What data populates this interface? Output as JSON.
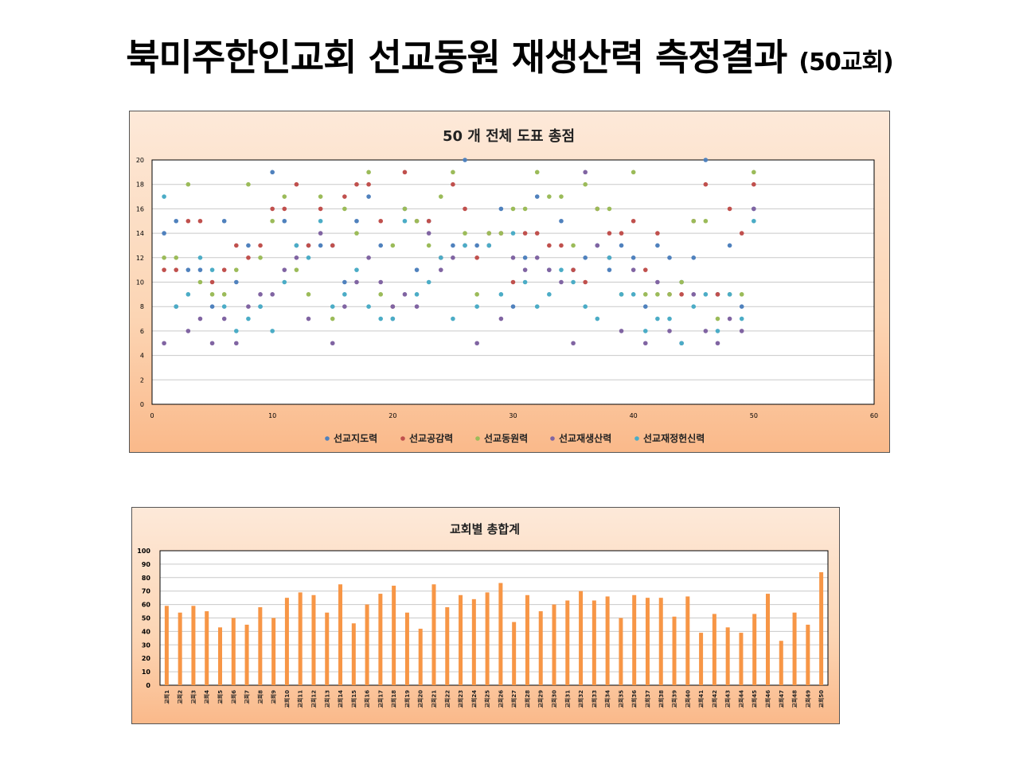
{
  "page": {
    "title": "북미주한인교회 선교동원 재생산력 측정결과",
    "subtitle": "(50교회)"
  },
  "chart_data": [
    {
      "type": "scatter",
      "title": "50 개 전체 도표 총점",
      "xlabel": "",
      "ylabel": "",
      "xlim": [
        0,
        60
      ],
      "ylim": [
        0,
        20
      ],
      "xticks": [
        0,
        10,
        20,
        30,
        40,
        50,
        60
      ],
      "yticks": [
        0,
        2,
        4,
        6,
        8,
        10,
        12,
        14,
        16,
        18,
        20
      ],
      "grid": true,
      "legend_position": "bottom",
      "x": [
        1,
        2,
        3,
        4,
        5,
        6,
        7,
        8,
        9,
        10,
        11,
        12,
        13,
        14,
        15,
        16,
        17,
        18,
        19,
        20,
        21,
        22,
        23,
        24,
        25,
        26,
        27,
        28,
        29,
        30,
        31,
        32,
        33,
        34,
        35,
        36,
        37,
        38,
        39,
        40,
        41,
        42,
        43,
        44,
        45,
        46,
        47,
        48,
        49,
        50
      ],
      "series": [
        {
          "name": "선교지도력",
          "color": "#4f81bd",
          "values": [
            14,
            15,
            11,
            11,
            8,
            15,
            10,
            13,
            8,
            19,
            15,
            13,
            13,
            13,
            13,
            10,
            15,
            17,
            13,
            7,
            16,
            11,
            15,
            12,
            13,
            20,
            13,
            13,
            16,
            8,
            12,
            17,
            11,
            15,
            11,
            12,
            13,
            11,
            13,
            12,
            8,
            13,
            12,
            10,
            12,
            20,
            9,
            13,
            8,
            16
          ]
        },
        {
          "name": "선교공감력",
          "color": "#c0504d",
          "values": [
            11,
            11,
            15,
            15,
            10,
            11,
            13,
            12,
            13,
            16,
            16,
            18,
            13,
            16,
            13,
            17,
            18,
            18,
            15,
            8,
            19,
            15,
            15,
            12,
            18,
            16,
            12,
            14,
            14,
            10,
            14,
            14,
            13,
            13,
            11,
            10,
            16,
            14,
            14,
            15,
            11,
            14,
            9,
            9,
            15,
            18,
            9,
            16,
            14,
            18
          ]
        },
        {
          "name": "선교동원력",
          "color": "#9bbb59",
          "values": [
            12,
            12,
            18,
            10,
            9,
            9,
            11,
            18,
            12,
            15,
            17,
            11,
            9,
            17,
            7,
            16,
            14,
            19,
            9,
            13,
            16,
            15,
            13,
            17,
            19,
            14,
            9,
            14,
            14,
            16,
            16,
            19,
            17,
            17,
            13,
            18,
            16,
            16,
            9,
            19,
            9,
            9,
            9,
            10,
            15,
            15,
            7,
            9,
            9,
            19
          ]
        },
        {
          "name": "선교재생산력",
          "color": "#8064a2",
          "values": [
            5,
            8,
            6,
            7,
            5,
            7,
            5,
            8,
            9,
            9,
            11,
            12,
            7,
            14,
            5,
            8,
            10,
            12,
            10,
            8,
            9,
            8,
            14,
            11,
            12,
            13,
            5,
            13,
            7,
            12,
            11,
            12,
            11,
            10,
            5,
            19,
            13,
            12,
            6,
            11,
            5,
            10,
            6,
            5,
            9,
            6,
            5,
            7,
            6,
            16
          ]
        },
        {
          "name": "선교재정헌신력",
          "color": "#4bacc6",
          "values": [
            17,
            8,
            9,
            12,
            11,
            8,
            6,
            7,
            8,
            6,
            10,
            13,
            12,
            15,
            8,
            9,
            11,
            8,
            7,
            7,
            15,
            9,
            10,
            12,
            7,
            13,
            8,
            13,
            9,
            14,
            10,
            8,
            9,
            11,
            10,
            8,
            7,
            12,
            9,
            9,
            6,
            7,
            7,
            5,
            8,
            9,
            6,
            9,
            7,
            15
          ]
        }
      ]
    },
    {
      "type": "bar",
      "title": "교회별 총합계",
      "xlabel": "",
      "ylabel": "",
      "ylim": [
        0,
        100
      ],
      "yticks": [
        0,
        10,
        20,
        30,
        40,
        50,
        60,
        70,
        80,
        90,
        100
      ],
      "grid": true,
      "color": "#f79646",
      "categories": [
        "교회1",
        "교회2",
        "교회3",
        "교회4",
        "교회5",
        "교회6",
        "교회7",
        "교회8",
        "교회9",
        "교회10",
        "교회11",
        "교회12",
        "교회13",
        "교회14",
        "교회15",
        "교회16",
        "교회17",
        "교회18",
        "교회19",
        "교회20",
        "교회21",
        "교회22",
        "교회23",
        "교회24",
        "교회25",
        "교회26",
        "교회27",
        "교회28",
        "교회29",
        "교회30",
        "교회31",
        "교회32",
        "교회33",
        "교회34",
        "교회35",
        "교회36",
        "교회37",
        "교회38",
        "교회39",
        "교회40",
        "교회41",
        "교회42",
        "교회43",
        "교회44",
        "교회45",
        "교회46",
        "교회47",
        "교회48",
        "교회49",
        "교회50"
      ],
      "values": [
        59,
        54,
        59,
        55,
        43,
        50,
        45,
        58,
        50,
        65,
        69,
        67,
        54,
        75,
        46,
        60,
        68,
        74,
        54,
        42,
        75,
        58,
        67,
        64,
        69,
        76,
        47,
        67,
        55,
        60,
        63,
        70,
        63,
        66,
        50,
        67,
        65,
        65,
        51,
        66,
        39,
        53,
        43,
        39,
        53,
        68,
        33,
        54,
        45,
        84
      ]
    }
  ]
}
